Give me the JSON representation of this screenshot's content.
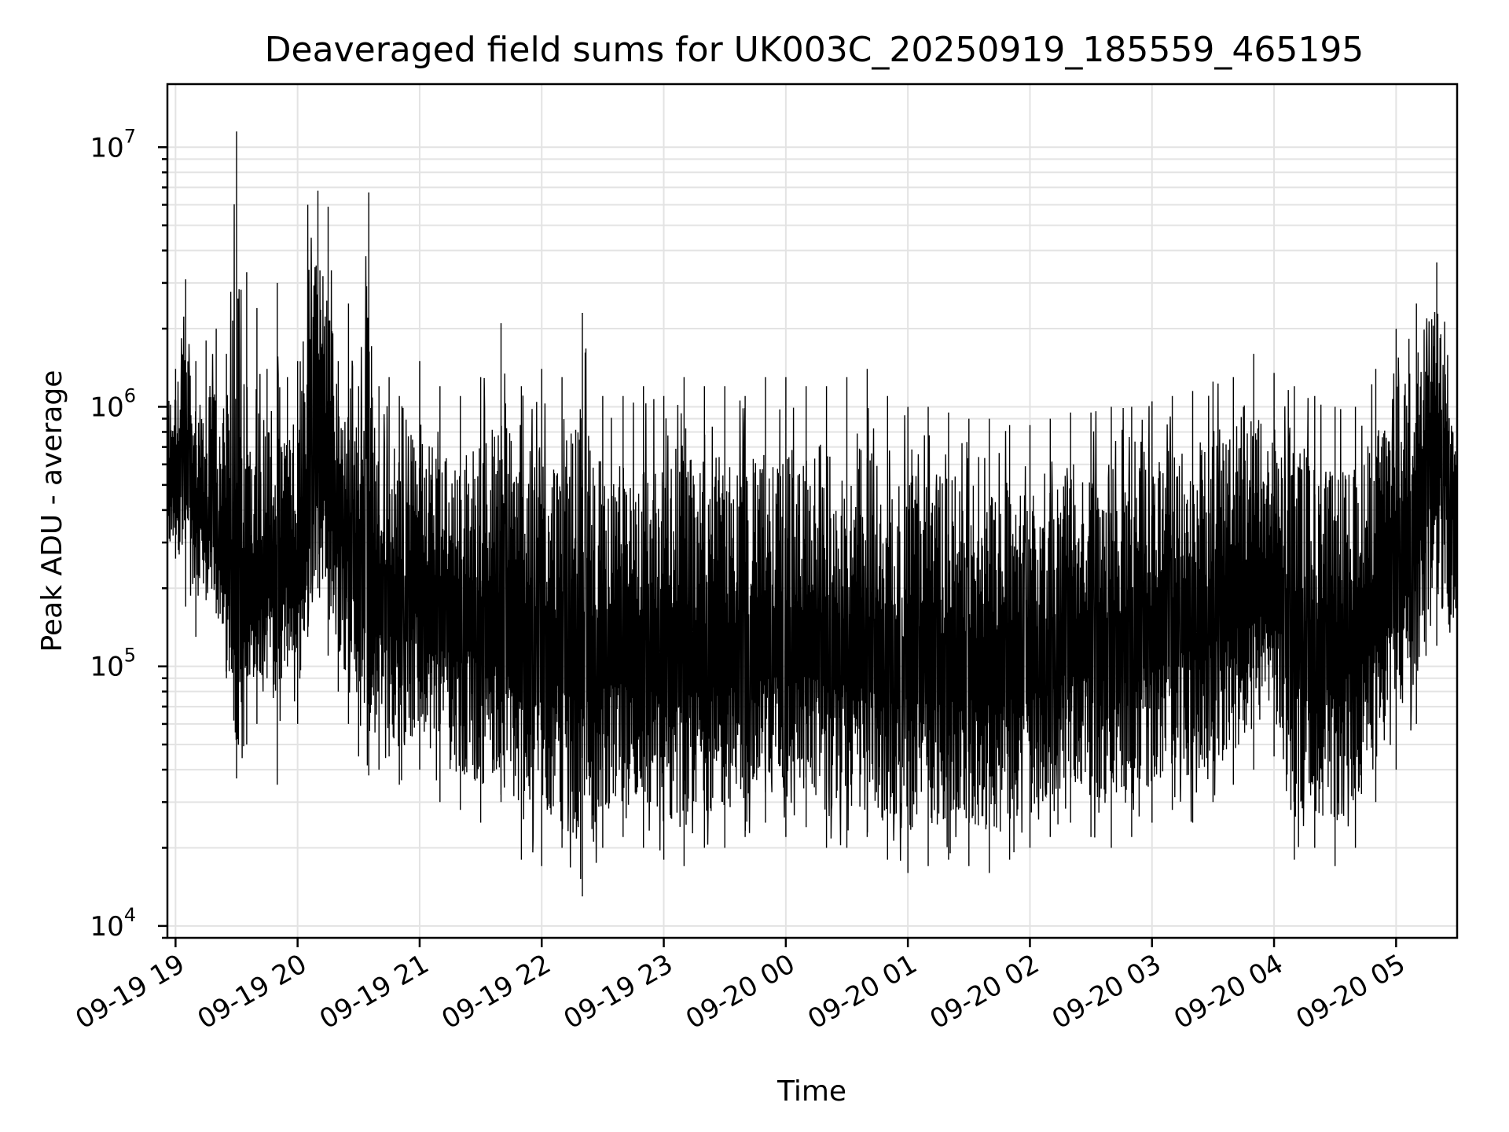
{
  "chart_data": {
    "type": "line",
    "title": "Deaveraged field sums for UK003C_20250919_185559_465195",
    "xlabel": "Time",
    "ylabel": "Peak ADU - average",
    "y_scale": "log",
    "ylim": [
      9000,
      17500000
    ],
    "y_ticks": [
      {
        "value": 10000,
        "base": "10",
        "exp": "4"
      },
      {
        "value": 100000,
        "base": "10",
        "exp": "5"
      },
      {
        "value": 1000000,
        "base": "10",
        "exp": "6"
      },
      {
        "value": 10000000,
        "base": "10",
        "exp": "7"
      }
    ],
    "xlim": [
      "2025-09-19 18:56",
      "2025-09-20 05:30"
    ],
    "x_ticks": [
      {
        "value": "2025-09-19 19:00",
        "label": "09-19 19"
      },
      {
        "value": "2025-09-19 20:00",
        "label": "09-19 20"
      },
      {
        "value": "2025-09-19 21:00",
        "label": "09-19 21"
      },
      {
        "value": "2025-09-19 22:00",
        "label": "09-19 22"
      },
      {
        "value": "2025-09-19 23:00",
        "label": "09-19 23"
      },
      {
        "value": "2025-09-20 00:00",
        "label": "09-20 00"
      },
      {
        "value": "2025-09-20 01:00",
        "label": "09-20 01"
      },
      {
        "value": "2025-09-20 02:00",
        "label": "09-20 02"
      },
      {
        "value": "2025-09-20 03:00",
        "label": "09-20 03"
      },
      {
        "value": "2025-09-20 04:00",
        "label": "09-20 04"
      },
      {
        "value": "2025-09-20 05:00",
        "label": "09-20 05"
      }
    ],
    "grid": true,
    "legend": "none",
    "line_color": "#000000",
    "series": [
      {
        "x": [
          "2025-09-19 18:56",
          "2025-09-19 19:00",
          "2025-09-19 19:05",
          "2025-09-19 19:10",
          "2025-09-19 19:15",
          "2025-09-19 19:20",
          "2025-09-19 19:25",
          "2025-09-19 19:30",
          "2025-09-19 19:35",
          "2025-09-19 19:40",
          "2025-09-19 19:45",
          "2025-09-19 19:50",
          "2025-09-19 19:55",
          "2025-09-19 20:00",
          "2025-09-19 20:05",
          "2025-09-19 20:10",
          "2025-09-19 20:15",
          "2025-09-19 20:20",
          "2025-09-19 20:25",
          "2025-09-19 20:30",
          "2025-09-19 20:35",
          "2025-09-19 20:40",
          "2025-09-19 20:45",
          "2025-09-19 20:50",
          "2025-09-19 21:00",
          "2025-09-19 21:10",
          "2025-09-19 21:20",
          "2025-09-19 21:30",
          "2025-09-19 21:40",
          "2025-09-19 21:50",
          "2025-09-19 22:00",
          "2025-09-19 22:10",
          "2025-09-19 22:20",
          "2025-09-19 22:30",
          "2025-09-19 22:40",
          "2025-09-19 22:50",
          "2025-09-19 23:00",
          "2025-09-19 23:10",
          "2025-09-19 23:20",
          "2025-09-19 23:30",
          "2025-09-19 23:40",
          "2025-09-19 23:50",
          "2025-09-20 00:00",
          "2025-09-20 00:10",
          "2025-09-20 00:20",
          "2025-09-20 00:30",
          "2025-09-20 00:40",
          "2025-09-20 00:50",
          "2025-09-20 01:00",
          "2025-09-20 01:10",
          "2025-09-20 01:20",
          "2025-09-20 01:30",
          "2025-09-20 01:40",
          "2025-09-20 01:50",
          "2025-09-20 02:00",
          "2025-09-20 02:10",
          "2025-09-20 02:20",
          "2025-09-20 02:30",
          "2025-09-20 02:40",
          "2025-09-20 02:50",
          "2025-09-20 03:00",
          "2025-09-20 03:10",
          "2025-09-20 03:20",
          "2025-09-20 03:30",
          "2025-09-20 03:40",
          "2025-09-20 03:50",
          "2025-09-20 04:00",
          "2025-09-20 04:10",
          "2025-09-20 04:20",
          "2025-09-20 04:30",
          "2025-09-20 04:40",
          "2025-09-20 04:50",
          "2025-09-20 05:00",
          "2025-09-20 05:10",
          "2025-09-20 05:20",
          "2025-09-20 05:30"
        ],
        "upper": [
          1800000,
          1400000,
          3100000,
          1500000,
          1800000,
          2000000,
          1600000,
          11500000,
          3300000,
          2400000,
          1400000,
          3000000,
          1300000,
          1500000,
          6000000,
          6800000,
          5900000,
          1500000,
          2500000,
          1200000,
          6700000,
          1200000,
          1300000,
          1100000,
          1500000,
          1200000,
          1100000,
          1300000,
          2100000,
          1200000,
          1400000,
          1300000,
          2300000,
          1100000,
          1100000,
          1200000,
          1100000,
          1300000,
          1200000,
          1200000,
          1100000,
          1300000,
          1300000,
          1200000,
          1200000,
          1300000,
          1400000,
          1100000,
          1000000,
          1000000,
          950000,
          900000,
          900000,
          850000,
          850000,
          900000,
          950000,
          950000,
          1000000,
          1000000,
          1050000,
          1100000,
          1150000,
          1250000,
          1300000,
          1600000,
          1350000,
          1200000,
          1100000,
          1000000,
          1000000,
          1400000,
          2000000,
          2500000,
          3600000,
          1100000
        ],
        "lower": [
          230000,
          260000,
          170000,
          130000,
          180000,
          160000,
          90000,
          37000,
          50000,
          60000,
          90000,
          35000,
          100000,
          60000,
          130000,
          200000,
          110000,
          80000,
          60000,
          45000,
          38000,
          40000,
          45000,
          35000,
          40000,
          30000,
          28000,
          25000,
          30000,
          18000,
          17000,
          20000,
          13000,
          20000,
          22000,
          20000,
          18000,
          17000,
          20000,
          20000,
          22000,
          25000,
          22000,
          24000,
          20000,
          20000,
          22000,
          18000,
          16000,
          17000,
          18000,
          17000,
          16000,
          18000,
          20000,
          22000,
          25000,
          22000,
          20000,
          22000,
          25000,
          28000,
          25000,
          30000,
          35000,
          40000,
          45000,
          18000,
          20000,
          17000,
          20000,
          30000,
          40000,
          60000,
          120000,
          110000
        ],
        "typical": [
          400000,
          600000,
          500000,
          400000,
          350000,
          300000,
          250000,
          120000,
          150000,
          200000,
          250000,
          150000,
          250000,
          200000,
          300000,
          800000,
          600000,
          400000,
          300000,
          200000,
          180000,
          170000,
          160000,
          150000,
          200000,
          150000,
          140000,
          130000,
          120000,
          100000,
          100000,
          100000,
          90000,
          100000,
          100000,
          100000,
          90000,
          90000,
          100000,
          100000,
          100000,
          110000,
          110000,
          110000,
          100000,
          100000,
          100000,
          90000,
          90000,
          90000,
          90000,
          90000,
          90000,
          90000,
          90000,
          100000,
          110000,
          110000,
          110000,
          110000,
          120000,
          130000,
          140000,
          150000,
          160000,
          180000,
          200000,
          100000,
          100000,
          100000,
          120000,
          150000,
          250000,
          400000,
          800000,
          400000
        ]
      }
    ]
  }
}
